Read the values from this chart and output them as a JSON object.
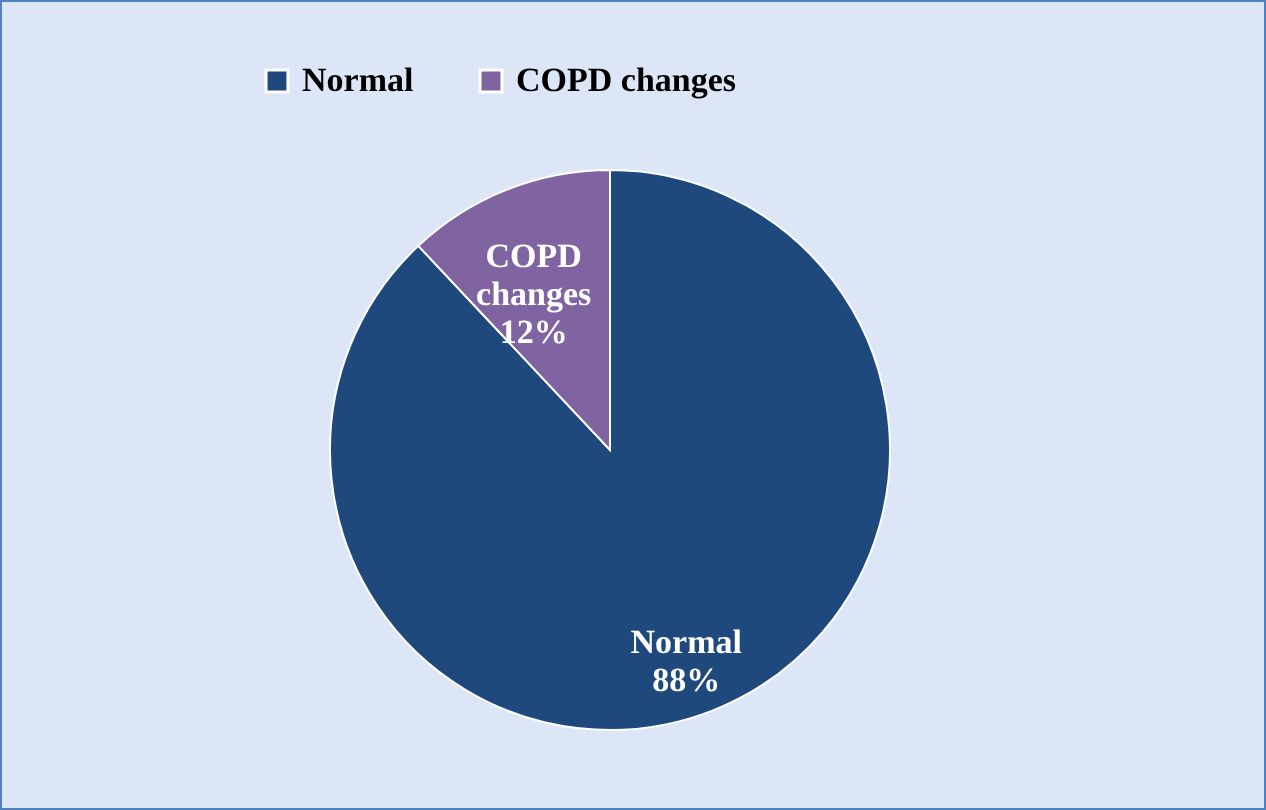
{
  "chart_data": {
    "type": "pie",
    "categories": [
      "Normal",
      "COPD changes"
    ],
    "values": [
      88,
      12
    ],
    "colors": [
      "#1f497d",
      "#8064a2"
    ],
    "value_labels": [
      "88%",
      "12%"
    ],
    "legend": "top"
  }
}
